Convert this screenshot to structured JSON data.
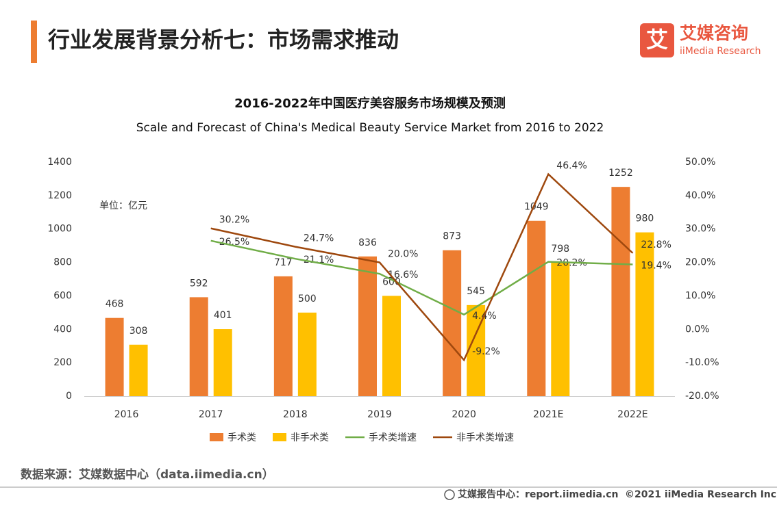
{
  "header": {
    "title": "行业发展背景分析七：市场需求推动",
    "logo_text": "艾媒咨询",
    "logo_sub": "iiMedia Research",
    "logo_mark": "艾"
  },
  "chart_data": {
    "type": "bar",
    "title": "2016-2022年中国医疗美容服务市场规模及预测",
    "subtitle": "Scale and Forecast of China's Medical Beauty Service Market from 2016 to 2022",
    "unit": "单位：亿元",
    "categories": [
      "2016",
      "2017",
      "2018",
      "2019",
      "2020",
      "2021E",
      "2022E"
    ],
    "series": [
      {
        "name": "手术类",
        "type": "bar",
        "color": "#ED7D31",
        "values": [
          468,
          592,
          717,
          836,
          873,
          1049,
          1252
        ]
      },
      {
        "name": "非手术类",
        "type": "bar",
        "color": "#FFC000",
        "values": [
          308,
          401,
          500,
          600,
          545,
          798,
          980
        ]
      },
      {
        "name": "手术类增速",
        "type": "line",
        "axis": "y2",
        "color": "#70AD47",
        "values": [
          null,
          26.5,
          21.1,
          16.6,
          4.4,
          20.2,
          19.4
        ],
        "value_labels": [
          null,
          "26.5%",
          "21.1%",
          "16.6%",
          "4.4%",
          "20.2%",
          "19.4%"
        ]
      },
      {
        "name": "非手术类增速",
        "type": "line",
        "axis": "y2",
        "color": "#9E480E",
        "values": [
          null,
          30.2,
          24.7,
          20.0,
          -9.2,
          46.4,
          22.8
        ],
        "value_labels": [
          null,
          "30.2%",
          "24.7%",
          "20.0%",
          "-9.2%",
          "46.4%",
          "22.8%"
        ]
      }
    ],
    "ylim": [
      0,
      1400
    ],
    "yticks": [
      0,
      200,
      400,
      600,
      800,
      1000,
      1200,
      1400
    ],
    "y2lim": [
      -20,
      50
    ],
    "y2ticks": [
      {
        "value": -20,
        "label": "-20.0%"
      },
      {
        "value": -10,
        "label": "-10.0%"
      },
      {
        "value": 0,
        "label": "0.0%"
      },
      {
        "value": 10,
        "label": "10.0%"
      },
      {
        "value": 20,
        "label": "20.0%"
      },
      {
        "value": 30,
        "label": "30.0%"
      },
      {
        "value": 40,
        "label": "40.0%"
      },
      {
        "value": 50,
        "label": "50.0%"
      }
    ],
    "legend": "bottom"
  },
  "footer": {
    "source": "数据来源：艾媒数据中心（data.iimedia.cn）",
    "report": "艾媒报告中心：report.iimedia.cn",
    "copyright": "©2021  iiMedia Research  Inc"
  }
}
